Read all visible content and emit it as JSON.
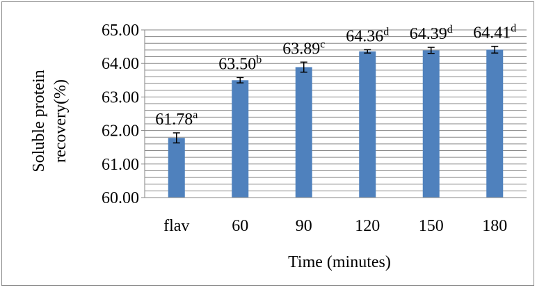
{
  "chart_data": {
    "type": "bar",
    "categories": [
      "flav",
      "60",
      "90",
      "120",
      "150",
      "180"
    ],
    "values": [
      61.78,
      63.5,
      63.89,
      64.36,
      64.39,
      64.41
    ],
    "errors": [
      0.15,
      0.08,
      0.15,
      0.05,
      0.09,
      0.1
    ],
    "value_labels": [
      "61.78",
      "63.50",
      "63.89",
      "64.36",
      "64.39",
      "64.41"
    ],
    "superscripts": [
      "a",
      "b",
      "c",
      "d",
      "d",
      "d"
    ],
    "title": "",
    "xlabel": "Time (minutes)",
    "ylabel_lines": [
      "Soluble protein",
      "recovery(%)"
    ],
    "ylim": [
      60.0,
      65.0
    ],
    "yticks": [
      "60.00",
      "61.00",
      "62.00",
      "63.00",
      "64.00",
      "65.00"
    ],
    "grid": true,
    "legend": "none",
    "colors": {
      "bar": "#4f81bd",
      "grid": "#868686",
      "axis": "#868686",
      "error": "#000000"
    }
  }
}
